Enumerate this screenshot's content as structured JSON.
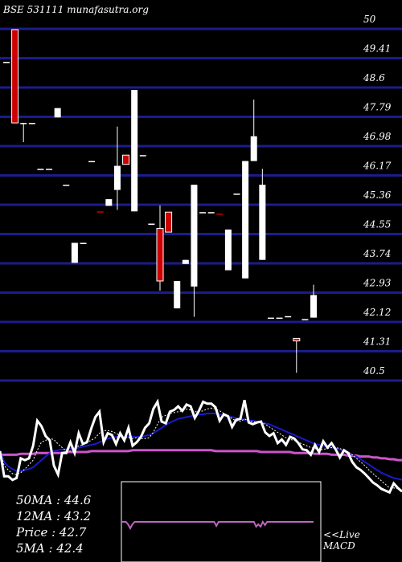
{
  "header": {
    "title": "BSE 531111 munafasutra.org"
  },
  "chart_data": {
    "type": "candlestick",
    "y_ticks": [
      "50",
      "49.41",
      "48.6",
      "47.79",
      "46.98",
      "46.17",
      "45.36",
      "44.55",
      "43.74",
      "42.93",
      "42.12",
      "41.31",
      "40.5"
    ],
    "ylim": [
      40.5,
      50
    ],
    "candles": [
      {
        "o": 48.85,
        "h": 48.85,
        "l": 48.85,
        "c": 48.85,
        "color": "white"
      },
      {
        "o": 47.2,
        "h": 49.72,
        "l": 47.2,
        "c": 49.72,
        "color": "red"
      },
      {
        "o": 47.2,
        "h": 47.2,
        "l": 46.68,
        "c": 47.2,
        "color": "white"
      },
      {
        "o": 47.2,
        "h": 47.2,
        "l": 47.2,
        "c": 47.2,
        "color": "white"
      },
      {
        "o": 45.96,
        "h": 45.96,
        "l": 45.96,
        "c": 45.96,
        "color": "white"
      },
      {
        "o": 45.96,
        "h": 45.96,
        "l": 45.96,
        "c": 45.96,
        "color": "white"
      },
      {
        "o": 47.6,
        "h": 47.6,
        "l": 47.35,
        "c": 47.35,
        "color": "white"
      },
      {
        "o": 45.53,
        "h": 45.53,
        "l": 45.53,
        "c": 45.53,
        "color": "white"
      },
      {
        "o": 43.96,
        "h": 43.96,
        "l": 43.42,
        "c": 43.42,
        "color": "white"
      },
      {
        "o": 43.96,
        "h": 43.96,
        "l": 43.96,
        "c": 43.96,
        "color": "white"
      },
      {
        "o": 46.17,
        "h": 46.17,
        "l": 46.17,
        "c": 46.17,
        "color": "white"
      },
      {
        "o": 44.81,
        "h": 44.81,
        "l": 44.81,
        "c": 44.81,
        "color": "red"
      },
      {
        "o": 45.14,
        "h": 45.14,
        "l": 44.96,
        "c": 44.96,
        "color": "white"
      },
      {
        "o": 46.04,
        "h": 47.1,
        "l": 44.85,
        "c": 45.39,
        "color": "white"
      },
      {
        "o": 46.08,
        "h": 46.33,
        "l": 46.08,
        "c": 46.33,
        "color": "red"
      },
      {
        "o": 48.09,
        "h": 48.09,
        "l": 44.81,
        "c": 44.81,
        "color": "white"
      },
      {
        "o": 46.33,
        "h": 46.33,
        "l": 46.33,
        "c": 46.33,
        "color": "white"
      },
      {
        "o": 44.48,
        "h": 44.48,
        "l": 44.48,
        "c": 44.48,
        "color": "white"
      },
      {
        "o": 44.35,
        "h": 44.97,
        "l": 42.67,
        "c": 42.93,
        "color": "red"
      },
      {
        "o": 44.25,
        "h": 44.79,
        "l": 44.25,
        "c": 44.79,
        "color": "red"
      },
      {
        "o": 42.93,
        "h": 42.93,
        "l": 42.19,
        "c": 42.19,
        "color": "white"
      },
      {
        "o": 43.39,
        "h": 43.5,
        "l": 43.39,
        "c": 43.5,
        "color": "white"
      },
      {
        "o": 45.53,
        "h": 45.53,
        "l": 41.96,
        "c": 42.78,
        "color": "white"
      },
      {
        "o": 44.79,
        "h": 44.79,
        "l": 44.79,
        "c": 44.79,
        "color": "white"
      },
      {
        "o": 44.79,
        "h": 44.79,
        "l": 44.79,
        "c": 44.79,
        "color": "white"
      },
      {
        "o": 44.75,
        "h": 44.75,
        "l": 44.75,
        "c": 44.75,
        "color": "red"
      },
      {
        "o": 44.32,
        "h": 44.32,
        "l": 43.22,
        "c": 43.22,
        "color": "white"
      },
      {
        "o": 45.29,
        "h": 45.29,
        "l": 45.29,
        "c": 45.29,
        "color": "white"
      },
      {
        "o": 46.17,
        "h": 46.17,
        "l": 43.0,
        "c": 43.0,
        "color": "white"
      },
      {
        "o": 46.84,
        "h": 47.83,
        "l": 46.17,
        "c": 46.17,
        "color": "white"
      },
      {
        "o": 45.53,
        "h": 45.96,
        "l": 43.5,
        "c": 43.5,
        "color": "white"
      },
      {
        "o": 41.94,
        "h": 41.94,
        "l": 41.94,
        "c": 41.94,
        "color": "white"
      },
      {
        "o": 41.94,
        "h": 41.94,
        "l": 41.94,
        "c": 41.94,
        "color": "white"
      },
      {
        "o": 41.98,
        "h": 41.98,
        "l": 41.98,
        "c": 41.98,
        "color": "white"
      },
      {
        "o": 41.38,
        "h": 41.38,
        "l": 40.45,
        "c": 41.31,
        "color": "red"
      },
      {
        "o": 41.9,
        "h": 41.9,
        "l": 41.9,
        "c": 41.9,
        "color": "white"
      },
      {
        "o": 41.94,
        "h": 42.83,
        "l": 41.94,
        "c": 42.55,
        "color": "white"
      }
    ],
    "indicators": {
      "price_line": [
        52,
        24,
        24,
        20,
        22,
        44,
        42,
        44,
        58,
        86,
        80,
        69,
        64,
        36,
        26,
        50,
        50,
        62,
        50,
        72,
        60,
        62,
        77,
        90,
        96,
        62,
        72,
        70,
        60,
        72,
        64,
        78,
        58,
        62,
        68,
        78,
        83,
        99,
        107,
        85,
        83,
        96,
        98,
        102,
        97,
        104,
        102,
        89,
        97,
        107,
        105,
        105,
        101,
        86,
        93,
        91,
        79,
        87,
        88,
        109,
        84,
        82,
        84,
        85,
        73,
        69,
        72,
        61,
        65,
        59,
        68,
        66,
        61,
        54,
        53,
        48,
        59,
        51,
        63,
        56,
        61,
        54,
        45,
        53,
        50,
        40,
        34,
        31,
        27,
        22,
        17,
        14,
        10,
        8,
        6,
        16,
        11,
        7
      ],
      "ma5": [
        52,
        36,
        31,
        27,
        26,
        28,
        32,
        37,
        42,
        53,
        62,
        64,
        66,
        65,
        60,
        56,
        52,
        52,
        54,
        58,
        59,
        62,
        64,
        67,
        72,
        75,
        75,
        74,
        72,
        69,
        67,
        67,
        66,
        67,
        66,
        66,
        67,
        73,
        82,
        90,
        92,
        94,
        95,
        96,
        97,
        99,
        98,
        96,
        96,
        97,
        99,
        100,
        99,
        97,
        94,
        92,
        88,
        86,
        85,
        88,
        86,
        85,
        84,
        84,
        82,
        79,
        76,
        73,
        70,
        67,
        65,
        64,
        62,
        60,
        58,
        56,
        55,
        53,
        54,
        55,
        56,
        56,
        55,
        53,
        51,
        48,
        44,
        40,
        36,
        31,
        27,
        23,
        19,
        15,
        11,
        11,
        10,
        9
      ],
      "ma12": [
        52,
        40,
        35,
        32,
        30,
        30,
        31,
        32,
        34,
        38,
        42,
        46,
        50,
        52,
        53,
        54,
        54,
        55,
        55,
        56,
        57,
        58,
        59,
        60,
        62,
        64,
        66,
        67,
        68,
        68,
        68,
        68,
        68,
        68,
        68,
        69,
        70,
        72,
        75,
        78,
        81,
        84,
        86,
        88,
        89,
        90,
        91,
        92,
        93,
        93,
        94,
        94,
        94,
        93,
        92,
        91,
        90,
        89,
        88,
        87,
        86,
        86,
        85,
        84,
        83,
        82,
        80,
        78,
        76,
        74,
        72,
        70,
        68,
        66,
        64,
        62,
        60,
        59,
        58,
        57,
        56,
        55,
        54,
        52,
        50,
        48,
        46,
        43,
        40,
        37,
        34,
        31,
        28,
        26,
        24,
        22,
        21,
        20
      ],
      "ma50": [
        48,
        48,
        48,
        48,
        48,
        49,
        49,
        49,
        49,
        50,
        50,
        50,
        50,
        50,
        50,
        50,
        51,
        51,
        51,
        51,
        51,
        51,
        52,
        52,
        52,
        52,
        52,
        52,
        52,
        52,
        52,
        52,
        53,
        53,
        53,
        53,
        53,
        53,
        53,
        53,
        53,
        53,
        53,
        53,
        53,
        53,
        53,
        53,
        53,
        53,
        53,
        53,
        52,
        52,
        52,
        52,
        52,
        52,
        52,
        52,
        52,
        52,
        52,
        51,
        51,
        51,
        51,
        51,
        51,
        51,
        51,
        50,
        50,
        50,
        50,
        50,
        49,
        49,
        49,
        49,
        48,
        48,
        48,
        48,
        47,
        47,
        47,
        46,
        46,
        46,
        45,
        45,
        44,
        44,
        43,
        43,
        42,
        42
      ]
    },
    "macd": [
      0,
      0,
      0,
      -3,
      -8,
      -3,
      0,
      0,
      0,
      0,
      0,
      0,
      0,
      0,
      0,
      0,
      0,
      0,
      0,
      0,
      0,
      0,
      0,
      0,
      0,
      0,
      0,
      0,
      0,
      0,
      0,
      0,
      0,
      0,
      0,
      0,
      0,
      0,
      0,
      0,
      0,
      0,
      0,
      -5,
      0,
      0,
      0,
      0,
      0,
      0,
      0,
      0,
      0,
      0,
      0,
      0,
      0,
      0,
      0,
      0,
      0,
      -6,
      -3,
      -6,
      0,
      -4,
      0,
      0,
      0,
      0,
      0,
      0,
      0,
      0,
      0,
      0,
      0,
      0,
      0,
      0,
      0,
      0,
      0,
      0,
      0,
      0,
      0,
      0
    ],
    "stats": [
      {
        "label": "50MA",
        "value": ": 44.6"
      },
      {
        "label": "12MA",
        "value": ": 43.2"
      },
      {
        "label": "Price",
        "value": "  : 42.7"
      },
      {
        "label": "5MA",
        "value": ": 42.4"
      }
    ],
    "macd_label": [
      "<<Live",
      "MACD"
    ]
  },
  "colors": {
    "grid": "#1c1c8c",
    "up_candle": "#ffffff",
    "down_candle": "#cc0000",
    "ma50": "#cc55cc",
    "ma12": "#1a1acc",
    "ma5": "#ffffff",
    "price_line": "#ffffff",
    "macd": "#bb66bb"
  }
}
